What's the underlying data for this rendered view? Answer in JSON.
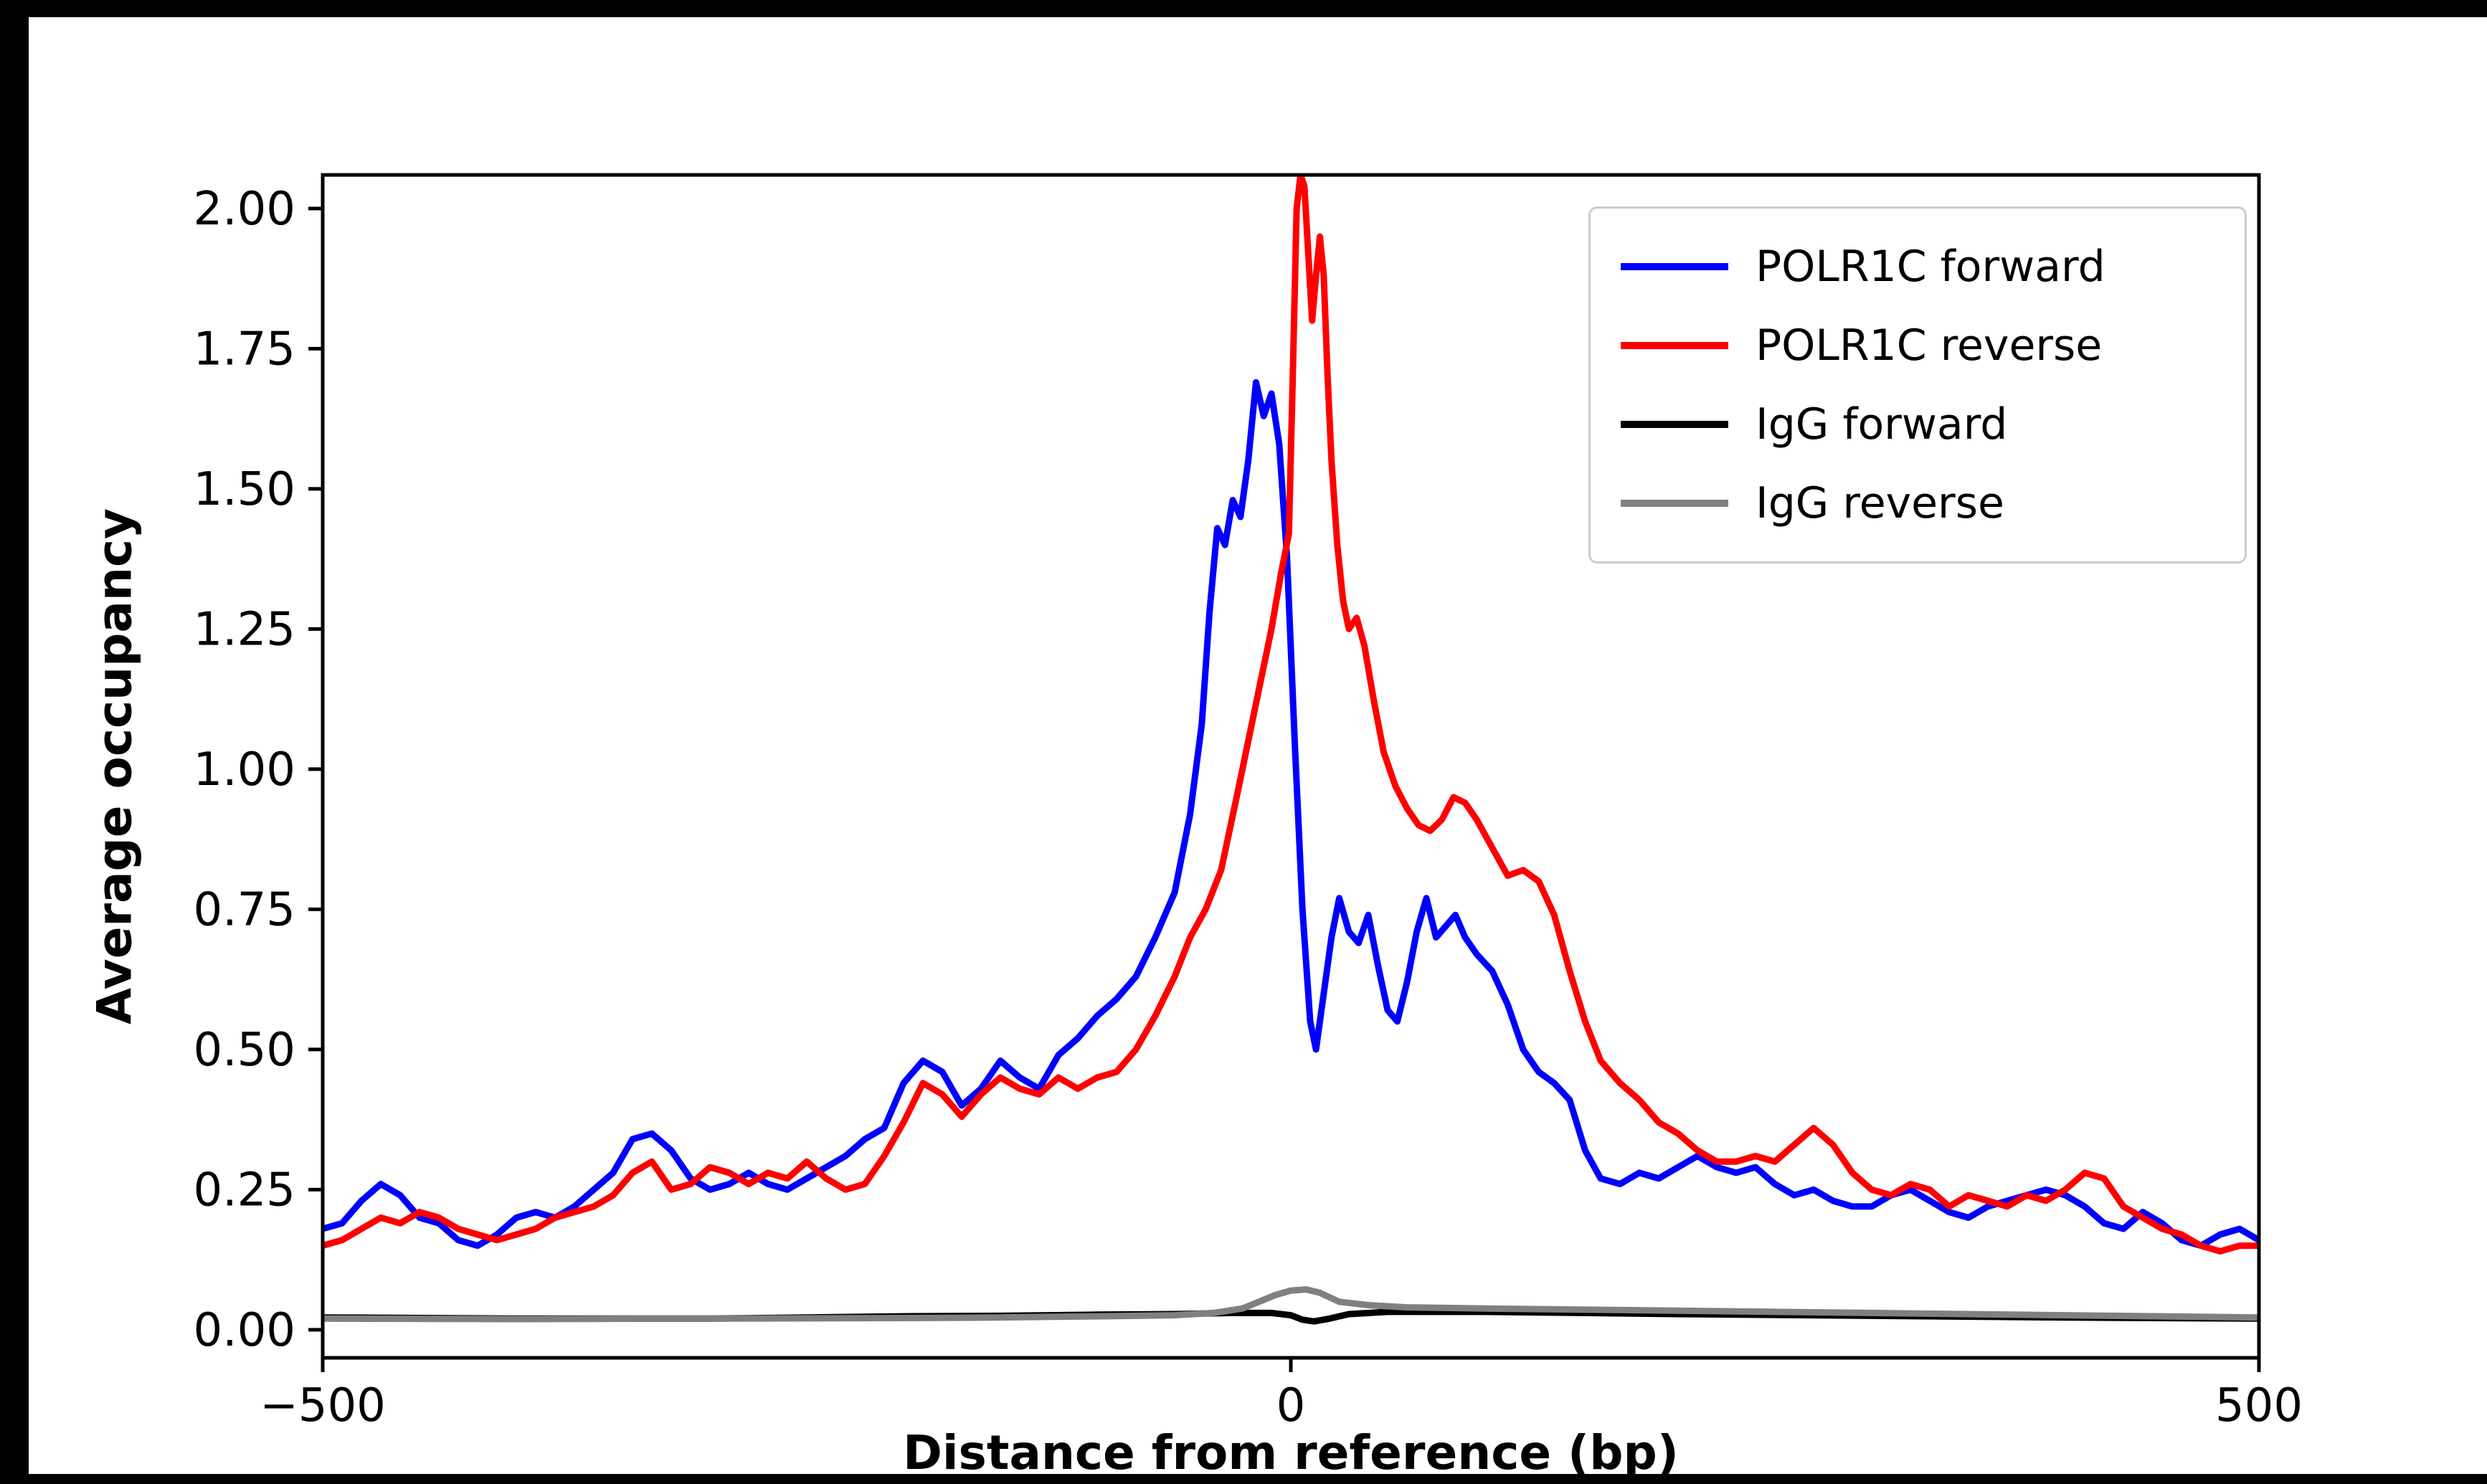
{
  "page": {
    "background": "#000000",
    "figure_background": "#ffffff"
  },
  "chart_data": {
    "type": "line",
    "title": "",
    "xlabel": "Distance from reference (bp)",
    "ylabel": "Average occupancy",
    "xlim": [
      -500,
      500
    ],
    "ylim": [
      -0.05,
      2.06
    ],
    "grid": false,
    "legend_position": "upper right",
    "x_ticks": [
      -500,
      0,
      500
    ],
    "x_tick_labels": [
      "−500",
      "0",
      "500"
    ],
    "y_ticks": [
      0,
      0.25,
      0.5,
      0.75,
      1.0,
      1.25,
      1.5,
      1.75,
      2.0
    ],
    "y_tick_labels": [
      "0.00",
      "0.25",
      "0.50",
      "0.75",
      "1.00",
      "1.25",
      "1.50",
      "1.75",
      "2.00"
    ],
    "series": [
      {
        "name": "POLR1C forward",
        "color": "#0000ff",
        "points": [
          [
            -500,
            0.18
          ],
          [
            -490,
            0.19
          ],
          [
            -480,
            0.23
          ],
          [
            -470,
            0.26
          ],
          [
            -460,
            0.24
          ],
          [
            -450,
            0.2
          ],
          [
            -440,
            0.19
          ],
          [
            -430,
            0.16
          ],
          [
            -420,
            0.15
          ],
          [
            -410,
            0.17
          ],
          [
            -400,
            0.2
          ],
          [
            -390,
            0.21
          ],
          [
            -380,
            0.2
          ],
          [
            -370,
            0.22
          ],
          [
            -360,
            0.25
          ],
          [
            -350,
            0.28
          ],
          [
            -340,
            0.34
          ],
          [
            -330,
            0.35
          ],
          [
            -320,
            0.32
          ],
          [
            -310,
            0.27
          ],
          [
            -300,
            0.25
          ],
          [
            -290,
            0.26
          ],
          [
            -280,
            0.28
          ],
          [
            -270,
            0.26
          ],
          [
            -260,
            0.25
          ],
          [
            -250,
            0.27
          ],
          [
            -240,
            0.29
          ],
          [
            -230,
            0.31
          ],
          [
            -220,
            0.34
          ],
          [
            -210,
            0.36
          ],
          [
            -200,
            0.44
          ],
          [
            -190,
            0.48
          ],
          [
            -180,
            0.46
          ],
          [
            -170,
            0.4
          ],
          [
            -160,
            0.43
          ],
          [
            -150,
            0.48
          ],
          [
            -140,
            0.45
          ],
          [
            -130,
            0.43
          ],
          [
            -120,
            0.49
          ],
          [
            -110,
            0.52
          ],
          [
            -100,
            0.56
          ],
          [
            -90,
            0.59
          ],
          [
            -80,
            0.63
          ],
          [
            -70,
            0.7
          ],
          [
            -60,
            0.78
          ],
          [
            -52,
            0.92
          ],
          [
            -46,
            1.08
          ],
          [
            -42,
            1.28
          ],
          [
            -38,
            1.43
          ],
          [
            -34,
            1.4
          ],
          [
            -30,
            1.48
          ],
          [
            -26,
            1.45
          ],
          [
            -22,
            1.55
          ],
          [
            -18,
            1.69
          ],
          [
            -14,
            1.63
          ],
          [
            -10,
            1.67
          ],
          [
            -6,
            1.58
          ],
          [
            -2,
            1.38
          ],
          [
            2,
            1.05
          ],
          [
            6,
            0.75
          ],
          [
            10,
            0.55
          ],
          [
            13,
            0.5
          ],
          [
            17,
            0.6
          ],
          [
            21,
            0.7
          ],
          [
            25,
            0.77
          ],
          [
            30,
            0.71
          ],
          [
            35,
            0.69
          ],
          [
            40,
            0.74
          ],
          [
            45,
            0.65
          ],
          [
            50,
            0.57
          ],
          [
            55,
            0.55
          ],
          [
            60,
            0.62
          ],
          [
            65,
            0.71
          ],
          [
            70,
            0.77
          ],
          [
            75,
            0.7
          ],
          [
            80,
            0.72
          ],
          [
            85,
            0.74
          ],
          [
            90,
            0.7
          ],
          [
            96,
            0.67
          ],
          [
            104,
            0.64
          ],
          [
            112,
            0.58
          ],
          [
            120,
            0.5
          ],
          [
            128,
            0.46
          ],
          [
            136,
            0.44
          ],
          [
            144,
            0.41
          ],
          [
            152,
            0.32
          ],
          [
            160,
            0.27
          ],
          [
            170,
            0.26
          ],
          [
            180,
            0.28
          ],
          [
            190,
            0.27
          ],
          [
            200,
            0.29
          ],
          [
            210,
            0.31
          ],
          [
            220,
            0.29
          ],
          [
            230,
            0.28
          ],
          [
            240,
            0.29
          ],
          [
            250,
            0.26
          ],
          [
            260,
            0.24
          ],
          [
            270,
            0.25
          ],
          [
            280,
            0.23
          ],
          [
            290,
            0.22
          ],
          [
            300,
            0.22
          ],
          [
            310,
            0.24
          ],
          [
            320,
            0.25
          ],
          [
            330,
            0.23
          ],
          [
            340,
            0.21
          ],
          [
            350,
            0.2
          ],
          [
            360,
            0.22
          ],
          [
            370,
            0.23
          ],
          [
            380,
            0.24
          ],
          [
            390,
            0.25
          ],
          [
            400,
            0.24
          ],
          [
            410,
            0.22
          ],
          [
            420,
            0.19
          ],
          [
            430,
            0.18
          ],
          [
            440,
            0.21
          ],
          [
            450,
            0.19
          ],
          [
            460,
            0.16
          ],
          [
            470,
            0.15
          ],
          [
            480,
            0.17
          ],
          [
            490,
            0.18
          ],
          [
            500,
            0.16
          ]
        ]
      },
      {
        "name": "POLR1C reverse",
        "color": "#ff0000",
        "points": [
          [
            -500,
            0.15
          ],
          [
            -490,
            0.16
          ],
          [
            -480,
            0.18
          ],
          [
            -470,
            0.2
          ],
          [
            -460,
            0.19
          ],
          [
            -450,
            0.21
          ],
          [
            -440,
            0.2
          ],
          [
            -430,
            0.18
          ],
          [
            -420,
            0.17
          ],
          [
            -410,
            0.16
          ],
          [
            -400,
            0.17
          ],
          [
            -390,
            0.18
          ],
          [
            -380,
            0.2
          ],
          [
            -370,
            0.21
          ],
          [
            -360,
            0.22
          ],
          [
            -350,
            0.24
          ],
          [
            -340,
            0.28
          ],
          [
            -330,
            0.3
          ],
          [
            -320,
            0.25
          ],
          [
            -310,
            0.26
          ],
          [
            -300,
            0.29
          ],
          [
            -290,
            0.28
          ],
          [
            -280,
            0.26
          ],
          [
            -270,
            0.28
          ],
          [
            -260,
            0.27
          ],
          [
            -250,
            0.3
          ],
          [
            -240,
            0.27
          ],
          [
            -230,
            0.25
          ],
          [
            -220,
            0.26
          ],
          [
            -210,
            0.31
          ],
          [
            -200,
            0.37
          ],
          [
            -190,
            0.44
          ],
          [
            -180,
            0.42
          ],
          [
            -170,
            0.38
          ],
          [
            -160,
            0.42
          ],
          [
            -150,
            0.45
          ],
          [
            -140,
            0.43
          ],
          [
            -130,
            0.42
          ],
          [
            -120,
            0.45
          ],
          [
            -110,
            0.43
          ],
          [
            -100,
            0.45
          ],
          [
            -90,
            0.46
          ],
          [
            -80,
            0.5
          ],
          [
            -70,
            0.56
          ],
          [
            -60,
            0.63
          ],
          [
            -52,
            0.7
          ],
          [
            -44,
            0.75
          ],
          [
            -36,
            0.82
          ],
          [
            -28,
            0.95
          ],
          [
            -22,
            1.05
          ],
          [
            -16,
            1.15
          ],
          [
            -10,
            1.25
          ],
          [
            -5,
            1.35
          ],
          [
            -1,
            1.42
          ],
          [
            1,
            1.7
          ],
          [
            3,
            2.0
          ],
          [
            5,
            2.06
          ],
          [
            7,
            2.04
          ],
          [
            9,
            1.92
          ],
          [
            11,
            1.8
          ],
          [
            13,
            1.88
          ],
          [
            15,
            1.95
          ],
          [
            17,
            1.88
          ],
          [
            19,
            1.7
          ],
          [
            21,
            1.55
          ],
          [
            24,
            1.4
          ],
          [
            27,
            1.3
          ],
          [
            30,
            1.25
          ],
          [
            34,
            1.27
          ],
          [
            38,
            1.22
          ],
          [
            43,
            1.12
          ],
          [
            48,
            1.03
          ],
          [
            54,
            0.97
          ],
          [
            60,
            0.93
          ],
          [
            66,
            0.9
          ],
          [
            72,
            0.89
          ],
          [
            78,
            0.91
          ],
          [
            84,
            0.95
          ],
          [
            90,
            0.94
          ],
          [
            96,
            0.91
          ],
          [
            104,
            0.86
          ],
          [
            112,
            0.81
          ],
          [
            120,
            0.82
          ],
          [
            128,
            0.8
          ],
          [
            136,
            0.74
          ],
          [
            144,
            0.64
          ],
          [
            152,
            0.55
          ],
          [
            160,
            0.48
          ],
          [
            170,
            0.44
          ],
          [
            180,
            0.41
          ],
          [
            190,
            0.37
          ],
          [
            200,
            0.35
          ],
          [
            210,
            0.32
          ],
          [
            220,
            0.3
          ],
          [
            230,
            0.3
          ],
          [
            240,
            0.31
          ],
          [
            250,
            0.3
          ],
          [
            260,
            0.33
          ],
          [
            270,
            0.36
          ],
          [
            280,
            0.33
          ],
          [
            290,
            0.28
          ],
          [
            300,
            0.25
          ],
          [
            310,
            0.24
          ],
          [
            320,
            0.26
          ],
          [
            330,
            0.25
          ],
          [
            340,
            0.22
          ],
          [
            350,
            0.24
          ],
          [
            360,
            0.23
          ],
          [
            370,
            0.22
          ],
          [
            380,
            0.24
          ],
          [
            390,
            0.23
          ],
          [
            400,
            0.25
          ],
          [
            410,
            0.28
          ],
          [
            420,
            0.27
          ],
          [
            430,
            0.22
          ],
          [
            440,
            0.2
          ],
          [
            450,
            0.18
          ],
          [
            460,
            0.17
          ],
          [
            470,
            0.15
          ],
          [
            480,
            0.14
          ],
          [
            490,
            0.15
          ],
          [
            500,
            0.15
          ]
        ]
      },
      {
        "name": "IgG forward",
        "color": "#000000",
        "points": [
          [
            -500,
            0.022
          ],
          [
            -400,
            0.02
          ],
          [
            -300,
            0.02
          ],
          [
            -250,
            0.022
          ],
          [
            -200,
            0.024
          ],
          [
            -150,
            0.025
          ],
          [
            -100,
            0.027
          ],
          [
            -60,
            0.028
          ],
          [
            -30,
            0.03
          ],
          [
            -10,
            0.03
          ],
          [
            0,
            0.026
          ],
          [
            6,
            0.018
          ],
          [
            12,
            0.015
          ],
          [
            20,
            0.02
          ],
          [
            30,
            0.028
          ],
          [
            50,
            0.032
          ],
          [
            100,
            0.032
          ],
          [
            150,
            0.03
          ],
          [
            200,
            0.028
          ],
          [
            300,
            0.025
          ],
          [
            400,
            0.022
          ],
          [
            500,
            0.02
          ]
        ]
      },
      {
        "name": "IgG reverse",
        "color": "#808080",
        "points": [
          [
            -500,
            0.02
          ],
          [
            -400,
            0.019
          ],
          [
            -300,
            0.02
          ],
          [
            -200,
            0.021
          ],
          [
            -150,
            0.022
          ],
          [
            -100,
            0.024
          ],
          [
            -60,
            0.026
          ],
          [
            -40,
            0.03
          ],
          [
            -25,
            0.038
          ],
          [
            -15,
            0.052
          ],
          [
            -8,
            0.062
          ],
          [
            0,
            0.07
          ],
          [
            8,
            0.072
          ],
          [
            15,
            0.066
          ],
          [
            25,
            0.05
          ],
          [
            40,
            0.044
          ],
          [
            60,
            0.04
          ],
          [
            100,
            0.038
          ],
          [
            150,
            0.036
          ],
          [
            200,
            0.034
          ],
          [
            300,
            0.03
          ],
          [
            400,
            0.026
          ],
          [
            500,
            0.022
          ]
        ]
      }
    ]
  }
}
